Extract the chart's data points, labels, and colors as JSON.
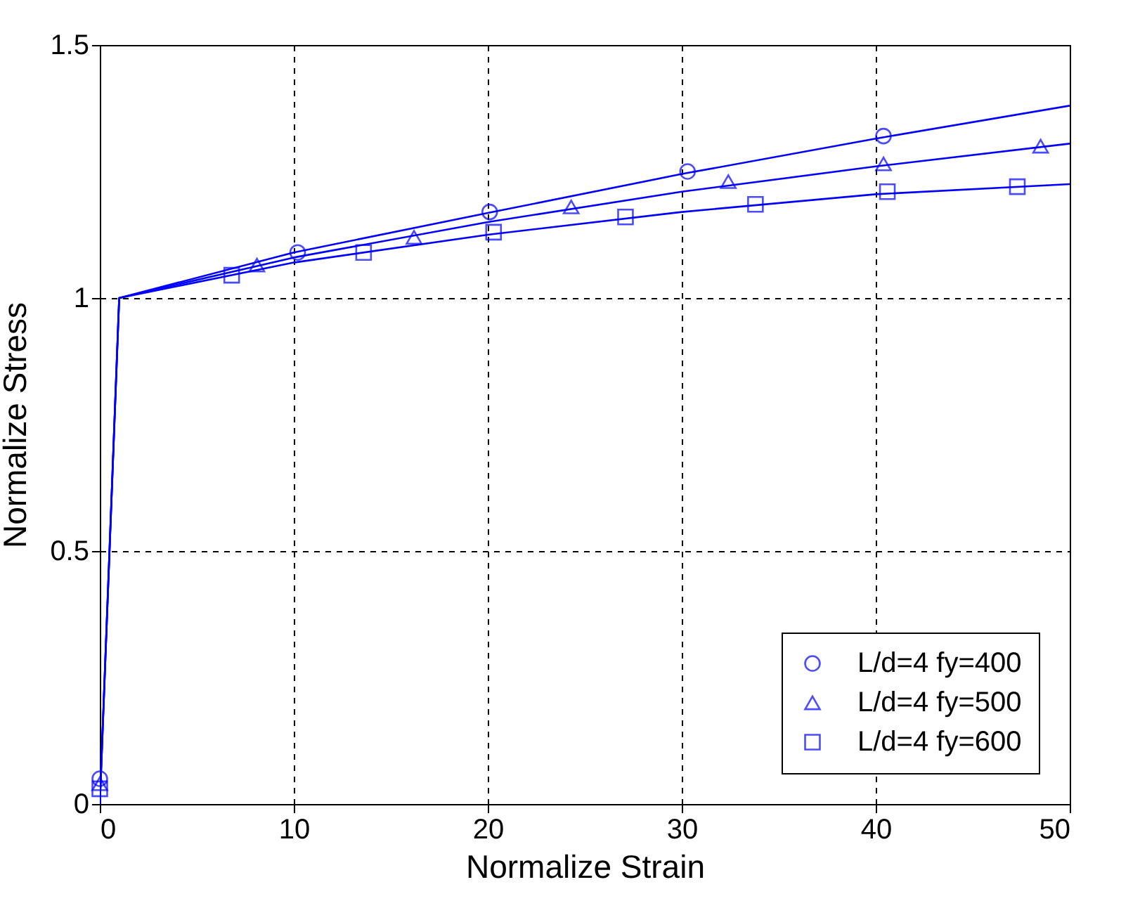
{
  "chart_data": {
    "type": "scatter",
    "xlabel": "Normalize Strain",
    "ylabel": "Normalize Stress",
    "xlim": [
      0,
      50
    ],
    "ylim": [
      0,
      1.5
    ],
    "xticks": [
      0,
      10,
      20,
      30,
      40,
      50
    ],
    "yticks": [
      0,
      0.5,
      1,
      1.5
    ],
    "grid": true,
    "legend": "bottom right",
    "series": [
      {
        "name": "L/d=4 fy=400",
        "type": "scatter",
        "marker": "circle",
        "color": "#0000ff",
        "x": [
          0,
          10.2,
          20.1,
          30.3,
          40.4
        ],
        "values": [
          0.05,
          1.09,
          1.17,
          1.25,
          1.32
        ]
      },
      {
        "name": "L/d=4 fy=500",
        "type": "scatter",
        "marker": "triangle",
        "color": "#0000ff",
        "x": [
          0,
          8.1,
          16.2,
          24.3,
          32.4,
          40.4,
          48.5
        ],
        "values": [
          0.04,
          1.065,
          1.12,
          1.18,
          1.23,
          1.265,
          1.3
        ]
      },
      {
        "name": "L/d=4 fy=600",
        "type": "scatter",
        "marker": "square",
        "color": "#0000ff",
        "x": [
          0,
          6.8,
          13.6,
          20.3,
          27.1,
          33.8,
          40.6,
          47.3
        ],
        "values": [
          0.03,
          1.045,
          1.09,
          1.13,
          1.16,
          1.185,
          1.21,
          1.22
        ]
      },
      {
        "type": "line",
        "marker": "none",
        "line_style": "solid",
        "color": "#0000ff",
        "x": [
          0,
          1,
          10,
          20,
          30,
          40,
          50
        ],
        "values": [
          0,
          1,
          1.09,
          1.168,
          1.245,
          1.315,
          1.38
        ]
      },
      {
        "type": "line",
        "marker": "none",
        "line_style": "solid",
        "color": "#0000ff",
        "x": [
          0,
          1,
          10,
          20,
          30,
          40,
          50
        ],
        "values": [
          0,
          1,
          1.08,
          1.15,
          1.21,
          1.26,
          1.305
        ]
      },
      {
        "type": "line",
        "marker": "none",
        "line_style": "solid",
        "color": "#0000ff",
        "x": [
          0,
          1,
          10,
          20,
          30,
          40,
          50
        ],
        "values": [
          0,
          1,
          1.07,
          1.125,
          1.17,
          1.205,
          1.225
        ]
      }
    ]
  }
}
